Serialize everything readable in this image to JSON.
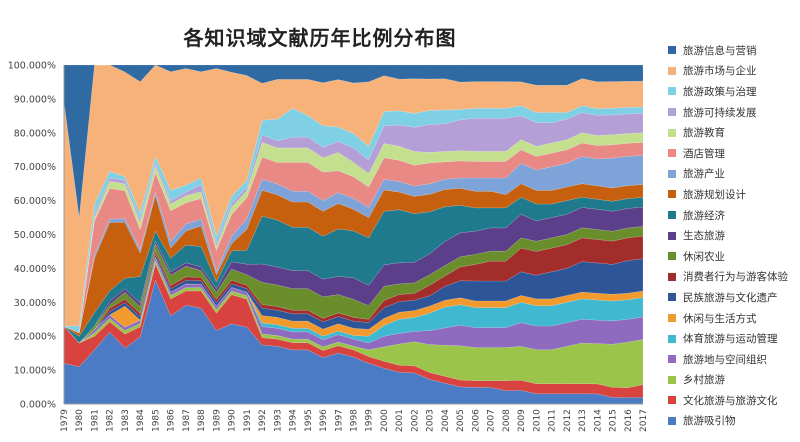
{
  "chart_data": {
    "type": "area",
    "stacked": true,
    "percent": true,
    "title": "各知识域文献历年比例分布图",
    "ylim": [
      0,
      100
    ],
    "yticks": [
      "0.000%",
      "10.000%",
      "20.000%",
      "30.000%",
      "40.000%",
      "50.000%",
      "60.000%",
      "70.000%",
      "80.000%",
      "90.000%",
      "100.000%"
    ],
    "grid": false,
    "legend_position": "right",
    "categories": [
      "1979",
      "1980",
      "1981",
      "1982",
      "1983",
      "1984",
      "1985",
      "1986",
      "1987",
      "1988",
      "1989",
      "1990",
      "1991",
      "1992",
      "1993",
      "1994",
      "1995",
      "1996",
      "1997",
      "1998",
      "1999",
      "2000",
      "2001",
      "2002",
      "2003",
      "2004",
      "2005",
      "2006",
      "2007",
      "2008",
      "2009",
      "2010",
      "2011",
      "2012",
      "2013",
      "2014",
      "2015",
      "2016",
      "2017"
    ],
    "series": [
      {
        "name": "旅游吸引物",
        "color": "#4a7bc4",
        "values": [
          12,
          11,
          16,
          21,
          16,
          20,
          38,
          26,
          28,
          28,
          21,
          22,
          22,
          16,
          16,
          15,
          15,
          13,
          14,
          13,
          12,
          10,
          9,
          9,
          7,
          6,
          5,
          5,
          5,
          4,
          4,
          3,
          3,
          3,
          3,
          3,
          2,
          2,
          2
        ]
      },
      {
        "name": "文化旅游与旅游文化",
        "color": "#d9433f",
        "values": [
          11,
          7,
          4,
          3,
          4,
          3,
          5,
          5,
          4,
          5,
          5,
          8,
          8,
          2,
          2,
          2,
          2,
          2,
          2,
          2,
          2,
          2,
          2,
          2,
          2,
          2,
          2,
          2,
          2,
          3,
          3,
          3,
          3,
          3,
          3,
          3,
          3,
          3,
          4
        ]
      },
      {
        "name": "乡村旅游",
        "color": "#9ac44a",
        "values": [
          0,
          0,
          1,
          1,
          1,
          1,
          1,
          1,
          1,
          1,
          1,
          1,
          1,
          1,
          1,
          1,
          1,
          1,
          1,
          1,
          2,
          4,
          6,
          7,
          8,
          9,
          10,
          10,
          10,
          10,
          10,
          10,
          10,
          11,
          12,
          12,
          13,
          14,
          14
        ]
      },
      {
        "name": "旅游地与空间组织",
        "color": "#8e6bbf",
        "values": [
          0,
          0,
          1,
          1,
          1,
          1,
          1,
          1,
          1,
          1,
          1,
          1,
          1,
          2,
          2,
          2,
          2,
          2,
          2,
          2,
          2,
          3,
          3,
          3,
          4,
          5,
          6,
          6,
          6,
          6,
          7,
          7,
          7,
          7,
          7,
          7,
          7,
          7,
          7
        ]
      },
      {
        "name": "体育旅游与运动管理",
        "color": "#3fb8d0",
        "values": [
          0,
          0,
          0,
          0,
          0,
          0,
          0,
          0,
          0,
          0,
          0,
          0,
          0,
          1,
          1,
          1,
          1,
          1,
          1,
          1,
          2,
          3,
          4,
          4,
          5,
          6,
          6,
          6,
          6,
          6,
          6,
          6,
          6,
          6,
          6,
          6,
          6,
          6,
          6
        ]
      },
      {
        "name": "休闲与生活方式",
        "color": "#f39a2e",
        "values": [
          0,
          0,
          0,
          0,
          6,
          0,
          0,
          0,
          0,
          0,
          0,
          0,
          0,
          2,
          2,
          2,
          2,
          2,
          2,
          2,
          2,
          2,
          2,
          2,
          2,
          2,
          2,
          2,
          2,
          2,
          2,
          2,
          2,
          2,
          2,
          2,
          2,
          2,
          2
        ]
      },
      {
        "name": "民族旅游与文化遗产",
        "color": "#2e5598",
        "values": [
          0,
          0,
          0,
          1,
          1,
          1,
          1,
          1,
          1,
          1,
          1,
          1,
          1,
          2,
          2,
          2,
          2,
          2,
          2,
          2,
          2,
          3,
          3,
          3,
          3,
          4,
          5,
          6,
          6,
          6,
          7,
          7,
          8,
          8,
          9,
          9,
          9,
          10,
          10
        ]
      },
      {
        "name": "消费者行为与游客体验",
        "color": "#a32d2b",
        "values": [
          0,
          0,
          0,
          1,
          1,
          1,
          1,
          1,
          1,
          1,
          1,
          1,
          1,
          1,
          1,
          1,
          1,
          1,
          1,
          1,
          1,
          2,
          2,
          2,
          3,
          3,
          4,
          5,
          6,
          6,
          7,
          7,
          7,
          7,
          7,
          7,
          7,
          7,
          7
        ]
      },
      {
        "name": "休闲农业",
        "color": "#6b8e2c",
        "values": [
          0,
          0,
          1,
          1,
          2,
          2,
          2,
          3,
          3,
          2,
          2,
          3,
          3,
          6,
          6,
          6,
          6,
          6,
          5,
          5,
          4,
          4,
          3,
          3,
          3,
          3,
          3,
          3,
          3,
          3,
          3,
          3,
          3,
          3,
          3,
          3,
          3,
          3,
          3
        ]
      },
      {
        "name": "生态旅游",
        "color": "#5c3f8a",
        "values": [
          0,
          0,
          0,
          1,
          1,
          1,
          1,
          1,
          1,
          1,
          1,
          2,
          3,
          5,
          5,
          5,
          5,
          5,
          5,
          6,
          6,
          6,
          6,
          6,
          6,
          7,
          7,
          7,
          7,
          7,
          7,
          6,
          6,
          6,
          6,
          6,
          6,
          6,
          6
        ]
      },
      {
        "name": "旅游经济",
        "color": "#1e7a8c",
        "values": [
          0,
          2,
          4,
          3,
          3,
          8,
          3,
          4,
          5,
          6,
          2,
          3,
          4,
          13,
          13,
          12,
          12,
          12,
          13,
          13,
          14,
          15,
          15,
          14,
          12,
          10,
          8,
          7,
          6,
          6,
          5,
          5,
          4,
          4,
          3,
          3,
          3,
          3,
          3
        ]
      },
      {
        "name": "旅游规划设计",
        "color": "#c6600e",
        "values": [
          0,
          1,
          16,
          20,
          16,
          7,
          11,
          3,
          4,
          6,
          2,
          2,
          6,
          7,
          7,
          7,
          7,
          7,
          7,
          6,
          6,
          6,
          5,
          5,
          5,
          5,
          5,
          5,
          5,
          4,
          4,
          4,
          4,
          4,
          4,
          4,
          4,
          4,
          4
        ]
      },
      {
        "name": "旅游产业",
        "color": "#7ea3d8",
        "values": [
          0,
          0,
          1,
          1,
          1,
          1,
          1,
          2,
          2,
          2,
          1,
          2,
          3,
          3,
          3,
          3,
          3,
          3,
          3,
          3,
          3,
          3,
          3,
          3,
          3,
          3,
          3,
          4,
          4,
          5,
          6,
          6,
          7,
          7,
          8,
          8,
          9,
          9,
          9
        ]
      },
      {
        "name": "酒店管理",
        "color": "#e88985",
        "values": [
          0,
          0,
          10,
          9,
          8,
          6,
          6,
          9,
          6,
          6,
          6,
          6,
          6,
          6,
          6,
          8,
          8,
          8,
          6,
          6,
          6,
          6,
          6,
          6,
          6,
          5,
          5,
          5,
          5,
          5,
          4,
          4,
          4,
          4,
          4,
          4,
          4,
          4,
          4
        ]
      },
      {
        "name": "旅游教育",
        "color": "#c4e08f",
        "values": [
          0,
          0,
          1,
          2,
          2,
          2,
          2,
          2,
          2,
          2,
          1,
          2,
          2,
          4,
          4,
          4,
          4,
          4,
          5,
          4,
          4,
          4,
          4,
          4,
          3,
          3,
          3,
          3,
          3,
          3,
          3,
          3,
          3,
          3,
          3,
          3,
          3,
          3,
          3
        ]
      },
      {
        "name": "旅游可持续发展",
        "color": "#b49fd6",
        "values": [
          0,
          0,
          1,
          1,
          1,
          1,
          1,
          1,
          1,
          2,
          1,
          1,
          1,
          2,
          2,
          3,
          3,
          3,
          3,
          4,
          4,
          5,
          6,
          7,
          8,
          8,
          9,
          10,
          10,
          10,
          7,
          7,
          6,
          6,
          6,
          6,
          6,
          6,
          6
        ]
      },
      {
        "name": "旅游政策与治理",
        "color": "#7fd0e4",
        "values": [
          0,
          2,
          3,
          2,
          1,
          2,
          2,
          3,
          2,
          2,
          2,
          2,
          2,
          4,
          6,
          8,
          6,
          6,
          4,
          4,
          4,
          4,
          4,
          4,
          4,
          4,
          3,
          3,
          3,
          3,
          3,
          3,
          3,
          2,
          2,
          2,
          2,
          2,
          2
        ]
      },
      {
        "name": "旅游市场与企业",
        "color": "#f7b27a",
        "values": [
          66,
          32,
          41,
          31,
          30,
          39,
          28,
          35,
          33,
          31,
          48,
          34,
          30,
          10,
          11,
          8,
          10,
          12,
          13,
          14,
          19,
          10,
          9,
          10,
          9,
          9,
          8,
          8,
          8,
          8,
          7,
          8,
          8,
          8,
          8,
          8,
          8,
          8,
          8
        ]
      },
      {
        "name": "旅游信息与营销",
        "color": "#2f6aa3",
        "values": [
          11,
          45,
          0,
          0,
          2,
          5,
          0,
          2,
          1,
          2,
          1,
          2,
          3,
          5,
          4,
          4,
          4,
          5,
          4,
          5,
          5,
          3,
          4,
          4,
          4,
          4,
          5,
          5,
          5,
          5,
          5,
          6,
          6,
          6,
          4,
          5,
          5,
          5,
          5
        ]
      }
    ]
  }
}
